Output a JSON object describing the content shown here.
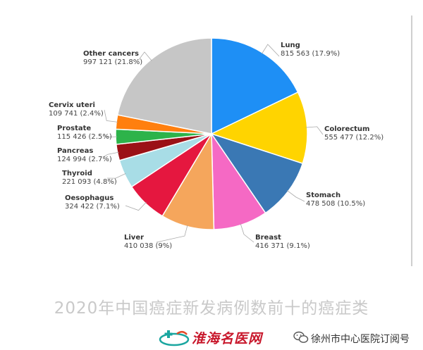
{
  "chart_data": {
    "type": "pie",
    "slices": [
      {
        "name": "Lung",
        "value": 815563,
        "value_label": "815 563 (17.9%)",
        "percent": 17.9,
        "color": "#1E8FF5"
      },
      {
        "name": "Colorectum",
        "value": 555477,
        "value_label": "555 477 (12.2%)",
        "percent": 12.2,
        "color": "#FFD400"
      },
      {
        "name": "Stomach",
        "value": 478508,
        "value_label": "478 508 (10.5%)",
        "percent": 10.5,
        "color": "#3A78B4"
      },
      {
        "name": "Breast",
        "value": 416371,
        "value_label": "416 371 (9.1%)",
        "percent": 9.1,
        "color": "#F569C4"
      },
      {
        "name": "Liver",
        "value": 410038,
        "value_label": "410 038 (9%)",
        "percent": 9.0,
        "color": "#F5A65C"
      },
      {
        "name": "Oesophagus",
        "value": 324422,
        "value_label": "324 422 (7.1%)",
        "percent": 7.1,
        "color": "#E5173F"
      },
      {
        "name": "Thyroid",
        "value": 221093,
        "value_label": "221 093 (4.8%)",
        "percent": 4.8,
        "color": "#A8DDE6"
      },
      {
        "name": "Pancreas",
        "value": 124994,
        "value_label": "124 994 (2.7%)",
        "percent": 2.7,
        "color": "#9B1116"
      },
      {
        "name": "Prostate",
        "value": 115426,
        "value_label": "115 426 (2.5%)",
        "percent": 2.5,
        "color": "#2DB34A"
      },
      {
        "name": "Cervix uteri",
        "value": 109741,
        "value_label": "109 741 (2.4%)",
        "percent": 2.4,
        "color": "#FF7F0E"
      },
      {
        "name": "Other cancers",
        "value": 997121,
        "value_label": "997 121 (21.8%)",
        "percent": 21.8,
        "color": "#C6C6C6"
      }
    ],
    "start_angle": "12 o'clock",
    "direction": "clockwise",
    "legend": "none"
  },
  "caption": "2020年中国癌症新发病例数前十的癌症类",
  "footer": {
    "logo_text": "淮海名医网",
    "account_name": "徐州市中心医院订阅号",
    "logo_color": "#C8182C"
  }
}
